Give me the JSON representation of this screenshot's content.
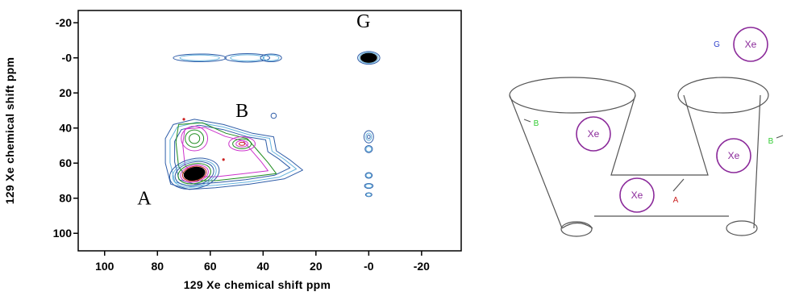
{
  "chart_data": {
    "type": "heatmap",
    "subtype": "2D NMR contour plot (EXSY)",
    "title": "",
    "xlabel": "129 Xe chemical shift ppm",
    "ylabel": "129 Xe chemical shift ppm",
    "xlim": [
      110,
      -35
    ],
    "ylim": [
      -27,
      110
    ],
    "x_axis_reversed": true,
    "y_axis_reversed": true,
    "x_ticks": [
      100,
      80,
      60,
      40,
      20,
      0,
      -20
    ],
    "x_tick_labels": [
      "100",
      "80",
      "60",
      "40",
      "20",
      "-0",
      "-20"
    ],
    "y_ticks": [
      -20,
      0,
      20,
      40,
      60,
      80,
      100
    ],
    "y_tick_labels": [
      "-20",
      "-0",
      "20",
      "40",
      "60",
      "80",
      "100"
    ],
    "grid": false,
    "contour_colors": [
      "#2f5da8",
      "#66b3dd",
      "#1e8c1e",
      "#cc33cc",
      "#cc2222"
    ],
    "peaks": [
      {
        "label": "A",
        "x": 66,
        "y": 66,
        "intensity": 1.0
      },
      {
        "label": "B",
        "x": 48,
        "y": 49,
        "intensity": 0.55
      },
      {
        "label": "G",
        "x": 0,
        "y": 0,
        "intensity": 1.0
      }
    ],
    "peak_label_positions": [
      {
        "label": "A",
        "x": 85,
        "y": 80
      },
      {
        "label": "B",
        "x": 48,
        "y": 30
      },
      {
        "label": "G",
        "x": 2,
        "y": -21
      }
    ],
    "cross_peaks": [
      {
        "between": [
          "A",
          "B"
        ],
        "x": 48,
        "y": 66
      },
      {
        "between": [
          "B",
          "A"
        ],
        "x": 66,
        "y": 46
      },
      {
        "between": [
          "A",
          "G"
        ],
        "x": 66,
        "y": 0
      },
      {
        "between": [
          "B",
          "G"
        ],
        "x": 48,
        "y": 0
      },
      {
        "between": [
          "G",
          "A"
        ],
        "x": 0,
        "y": 45
      },
      {
        "between": [
          "G",
          "B"
        ],
        "x": 0,
        "y": 50
      }
    ]
  },
  "schematic": {
    "xe_label": "Xe",
    "site_labels": {
      "A": "A",
      "B": "B",
      "G": "G"
    },
    "site_colors": {
      "A": "#cc2222",
      "B": "#33cc33",
      "G": "#3344cc",
      "Xe": "#8b2a9a"
    }
  }
}
